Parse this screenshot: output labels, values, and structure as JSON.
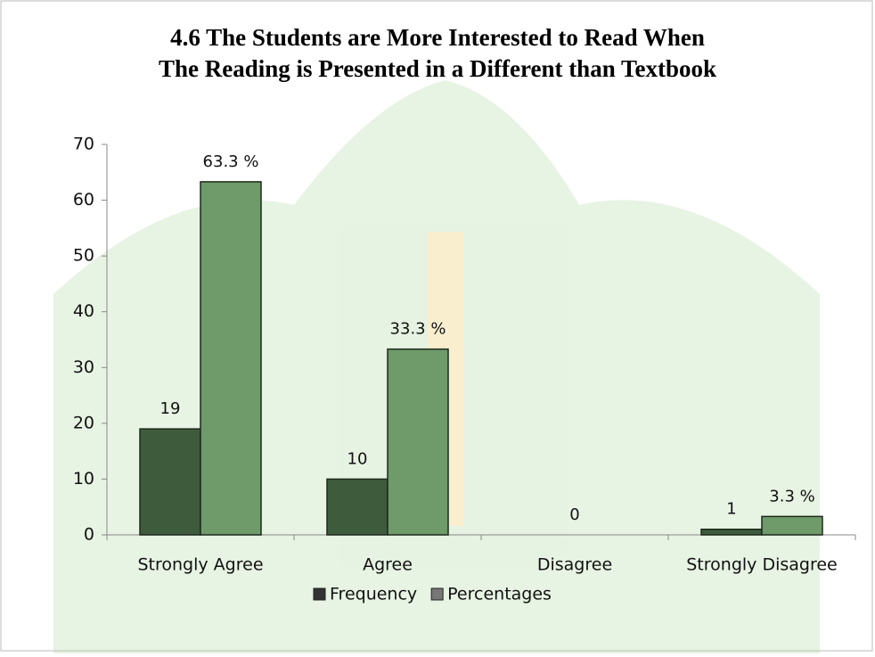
{
  "chart_data": {
    "type": "bar",
    "title": [
      "4.6 The Students are More Interested to Read When",
      "The Reading is Presented in a Different than Textbook"
    ],
    "categories": [
      "Strongly Agree",
      "Agree",
      "Disagree",
      "Strongly Disagree"
    ],
    "series": [
      {
        "name": "Frequency",
        "color": "#3e5b3c",
        "values": [
          19,
          10,
          0,
          1
        ],
        "value_labels": [
          "19",
          "10",
          "0",
          "1"
        ]
      },
      {
        "name": "Percentages",
        "color": "#6f9a6a",
        "values": [
          63.3,
          33.3,
          0,
          3.3
        ],
        "value_labels": [
          "63.3 %",
          "33.3 %",
          null,
          "3.3 %"
        ]
      }
    ],
    "ylim": [
      0,
      70
    ],
    "yticks": [
      0,
      10,
      20,
      30,
      40,
      50,
      60,
      70
    ],
    "grid": false,
    "legend": "bottom"
  }
}
